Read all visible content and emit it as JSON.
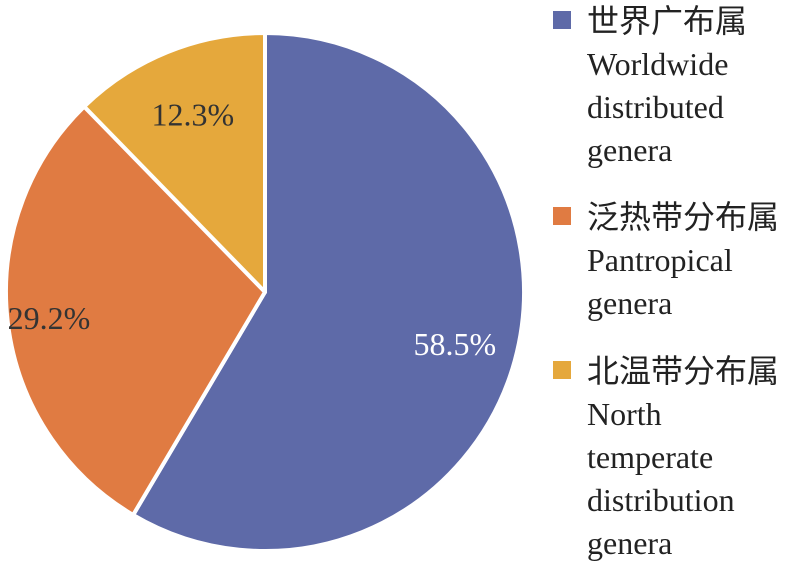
{
  "chart_data": {
    "type": "pie",
    "title": "",
    "start_angle_deg": 0,
    "direction": "clockwise",
    "slice_border_color": "#ffffff",
    "slices": [
      {
        "value": 58.5,
        "label": "58.5%",
        "color": "#5e6aa8",
        "label_color": "#ffffff",
        "legend": [
          "世界广布属",
          "Worldwide",
          "distributed",
          "genera"
        ]
      },
      {
        "value": 29.2,
        "label": "29.2%",
        "color": "#e07b42",
        "label_color": "#333333",
        "legend": [
          "泛热带分布属",
          "Pantropical",
          "genera"
        ]
      },
      {
        "value": 12.3,
        "label": "12.3%",
        "color": "#e5a83c",
        "label_color": "#333333",
        "legend": [
          "北温带分布属",
          "North",
          "temperate",
          "distribution",
          "genera"
        ]
      }
    ],
    "legend_placement": "right"
  }
}
